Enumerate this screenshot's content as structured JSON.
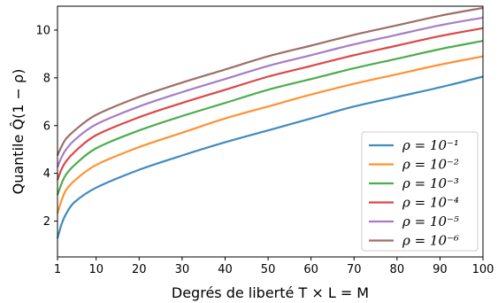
{
  "chart_data": {
    "type": "line",
    "xlabel": "Degrés de liberté T × L = M",
    "ylabel": "Quantile Q̂(1 − ρ)",
    "xlim": [
      1,
      100
    ],
    "ylim": [
      0.5,
      11.0
    ],
    "xticks": [
      1,
      10,
      20,
      30,
      40,
      50,
      60,
      70,
      80,
      90,
      100
    ],
    "yticks": [
      2,
      4,
      6,
      8,
      10
    ],
    "grid": false,
    "legend_position": "lower-right",
    "x": [
      1,
      2,
      3,
      5,
      10,
      20,
      30,
      40,
      50,
      60,
      70,
      80,
      90,
      100
    ],
    "series": [
      {
        "name": "ρ = 10⁻¹",
        "color": "#1f77b4",
        "values": [
          1.28,
          1.9,
          2.3,
          2.8,
          3.4,
          4.15,
          4.75,
          5.3,
          5.8,
          6.3,
          6.8,
          7.2,
          7.6,
          8.05
        ]
      },
      {
        "name": "ρ = 10⁻²",
        "color": "#ff7f0e",
        "values": [
          2.33,
          2.9,
          3.3,
          3.7,
          4.35,
          5.1,
          5.7,
          6.3,
          6.8,
          7.3,
          7.75,
          8.15,
          8.55,
          8.9
        ]
      },
      {
        "name": "ρ = 10⁻³",
        "color": "#2ca02c",
        "values": [
          3.09,
          3.6,
          3.95,
          4.35,
          5.05,
          5.8,
          6.4,
          6.95,
          7.5,
          7.95,
          8.4,
          8.8,
          9.2,
          9.55
        ]
      },
      {
        "name": "ρ = 10⁻⁴",
        "color": "#d62728",
        "values": [
          3.72,
          4.2,
          4.5,
          4.9,
          5.6,
          6.35,
          6.95,
          7.5,
          8.05,
          8.5,
          8.95,
          9.35,
          9.75,
          10.08
        ]
      },
      {
        "name": "ρ = 10⁻⁵",
        "color": "#9467bd",
        "values": [
          4.26,
          4.7,
          5.0,
          5.4,
          6.05,
          6.8,
          7.4,
          7.95,
          8.5,
          8.95,
          9.4,
          9.8,
          10.2,
          10.52
        ]
      },
      {
        "name": "ρ = 10⁻⁶",
        "color": "#8c564b",
        "values": [
          4.75,
          5.15,
          5.45,
          5.8,
          6.45,
          7.2,
          7.8,
          8.35,
          8.9,
          9.35,
          9.8,
          10.2,
          10.6,
          10.93
        ]
      }
    ]
  }
}
